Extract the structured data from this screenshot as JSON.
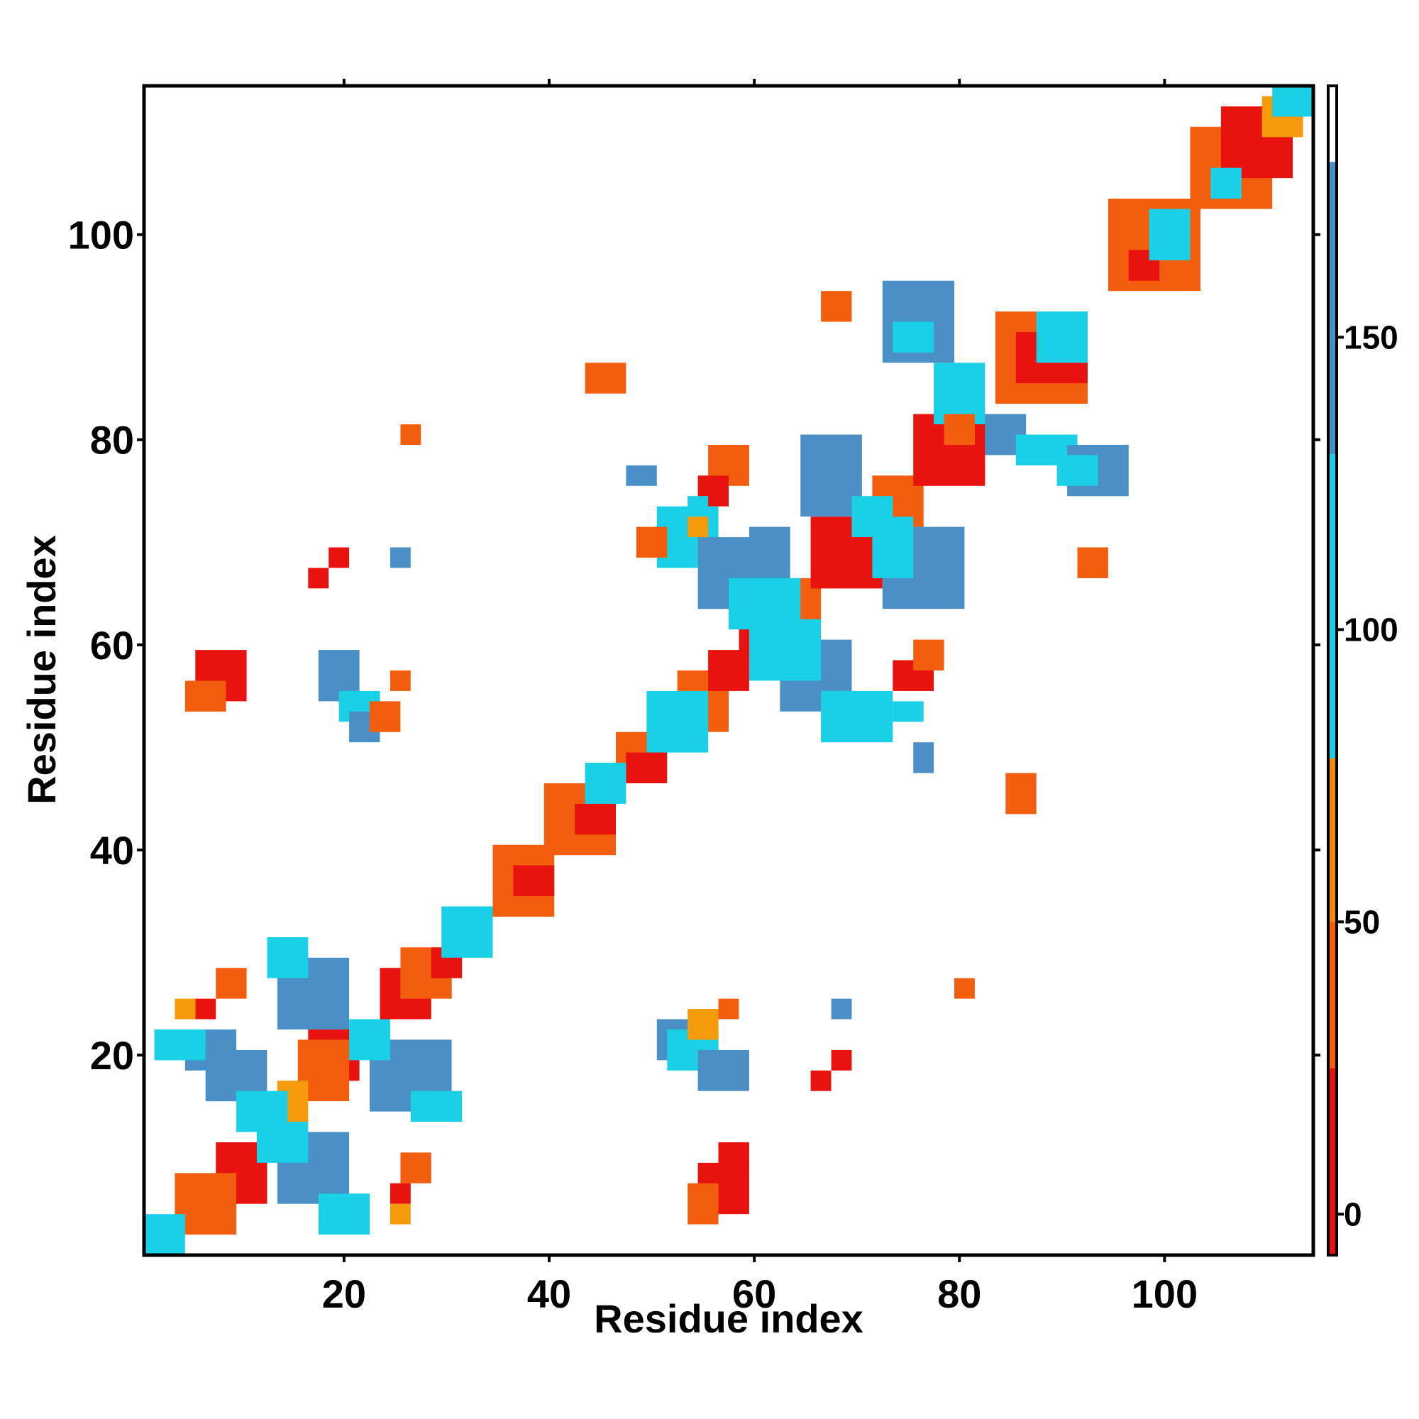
{
  "chart_data": {
    "type": "heatmap",
    "title": "",
    "xlabel": "Residue index",
    "ylabel": "Residue index",
    "xlim": [
      1,
      114
    ],
    "ylim": [
      1,
      114
    ],
    "x_ticks": [
      20,
      40,
      60,
      80,
      100
    ],
    "y_ticks": [
      20,
      40,
      60,
      80,
      100
    ],
    "colorbar": {
      "ticks": [
        0,
        50,
        100,
        150
      ],
      "range": [
        -7,
        193
      ],
      "bands": [
        {
          "from": -7,
          "to": 25,
          "color": "#e8120e"
        },
        {
          "from": 25,
          "to": 50,
          "color": "#f25e0d"
        },
        {
          "from": 50,
          "to": 78,
          "color": "#f58a0a"
        },
        {
          "from": 78,
          "to": 130,
          "color": "#1ad0e6"
        },
        {
          "from": 130,
          "to": 180,
          "color": "#4a8fc6"
        },
        {
          "from": 180,
          "to": 193,
          "color": "#ffffff"
        }
      ]
    },
    "cell_colors": {
      "r": "#e8120e",
      "o": "#f25e0d",
      "y": "#f59a0a",
      "c": "#1ad0e6",
      "b": "#4a8fc6"
    },
    "cells": [
      {
        "c": "r",
        "x1": 17,
        "x2": 21,
        "y1": 18,
        "y2": 22
      },
      {
        "c": "o",
        "x1": 16,
        "x2": 20,
        "y1": 16,
        "y2": 21
      },
      {
        "c": "r",
        "x1": 8,
        "x2": 12,
        "y1": 6,
        "y2": 11
      },
      {
        "c": "o",
        "x1": 4,
        "x2": 9,
        "y1": 3,
        "y2": 8
      },
      {
        "c": "y",
        "x1": 14,
        "x2": 16,
        "y1": 14,
        "y2": 17
      },
      {
        "c": "r",
        "x1": 24,
        "x2": 28,
        "y1": 24,
        "y2": 28
      },
      {
        "c": "o",
        "x1": 26,
        "x2": 30,
        "y1": 26,
        "y2": 30
      },
      {
        "c": "r",
        "x1": 29,
        "x2": 31,
        "y1": 28,
        "y2": 30
      },
      {
        "c": "o",
        "x1": 35,
        "x2": 40,
        "y1": 34,
        "y2": 40
      },
      {
        "c": "r",
        "x1": 37,
        "x2": 40,
        "y1": 36,
        "y2": 38
      },
      {
        "c": "o",
        "x1": 40,
        "x2": 46,
        "y1": 40,
        "y2": 46
      },
      {
        "c": "r",
        "x1": 43,
        "x2": 46,
        "y1": 42,
        "y2": 44
      },
      {
        "c": "o",
        "x1": 47,
        "x2": 51,
        "y1": 47,
        "y2": 51
      },
      {
        "c": "r",
        "x1": 48,
        "x2": 51,
        "y1": 47,
        "y2": 49
      },
      {
        "c": "o",
        "x1": 53,
        "x2": 57,
        "y1": 52,
        "y2": 57
      },
      {
        "c": "r",
        "x1": 56,
        "x2": 59,
        "y1": 56,
        "y2": 59
      },
      {
        "c": "r",
        "x1": 59,
        "x2": 62,
        "y1": 59,
        "y2": 62
      },
      {
        "c": "o",
        "x1": 62,
        "x2": 66,
        "y1": 62,
        "y2": 66
      },
      {
        "c": "r",
        "x1": 66,
        "x2": 72,
        "y1": 66,
        "y2": 72
      },
      {
        "c": "o",
        "x1": 72,
        "x2": 76,
        "y1": 72,
        "y2": 76
      },
      {
        "c": "r",
        "x1": 76,
        "x2": 82,
        "y1": 76,
        "y2": 82
      },
      {
        "c": "o",
        "x1": 84,
        "x2": 92,
        "y1": 84,
        "y2": 92
      },
      {
        "c": "r",
        "x1": 86,
        "x2": 92,
        "y1": 86,
        "y2": 90
      },
      {
        "c": "o",
        "x1": 95,
        "x2": 103,
        "y1": 95,
        "y2": 103
      },
      {
        "c": "r",
        "x1": 97,
        "x2": 99,
        "y1": 96,
        "y2": 98
      },
      {
        "c": "o",
        "x1": 103,
        "x2": 110,
        "y1": 103,
        "y2": 110
      },
      {
        "c": "r",
        "x1": 106,
        "x2": 112,
        "y1": 106,
        "y2": 112
      },
      {
        "c": "y",
        "x1": 110,
        "x2": 113,
        "y1": 110,
        "y2": 113
      },
      {
        "c": "c",
        "x1": 1,
        "x2": 4,
        "y1": 1,
        "y2": 4
      },
      {
        "c": "c",
        "x1": 30,
        "x2": 34,
        "y1": 30,
        "y2": 34
      },
      {
        "c": "c",
        "x1": 44,
        "x2": 47,
        "y1": 45,
        "y2": 48
      },
      {
        "c": "c",
        "x1": 50,
        "x2": 55,
        "y1": 50,
        "y2": 55
      },
      {
        "c": "c",
        "x1": 99,
        "x2": 102,
        "y1": 98,
        "y2": 102
      },
      {
        "c": "c",
        "x1": 88,
        "x2": 92,
        "y1": 88,
        "y2": 92
      },
      {
        "c": "c",
        "x1": 105,
        "x2": 107,
        "y1": 104,
        "y2": 106
      },
      {
        "c": "c",
        "x1": 111,
        "x2": 114,
        "y1": 112,
        "y2": 114
      },
      {
        "c": "b",
        "x1": 5,
        "x2": 9,
        "y1": 19,
        "y2": 22
      },
      {
        "c": "c",
        "x1": 2,
        "x2": 6,
        "y1": 20,
        "y2": 22
      },
      {
        "c": "b",
        "x1": 7,
        "x2": 12,
        "y1": 16,
        "y2": 20
      },
      {
        "c": "c",
        "x1": 10,
        "x2": 14,
        "y1": 13,
        "y2": 16
      },
      {
        "c": "b",
        "x1": 14,
        "x2": 20,
        "y1": 6,
        "y2": 12
      },
      {
        "c": "c",
        "x1": 12,
        "x2": 16,
        "y1": 10,
        "y2": 13
      },
      {
        "c": "c",
        "x1": 18,
        "x2": 22,
        "y1": 3,
        "y2": 6
      },
      {
        "c": "b",
        "x1": 14,
        "x2": 20,
        "y1": 23,
        "y2": 29
      },
      {
        "c": "c",
        "x1": 13,
        "x2": 16,
        "y1": 28,
        "y2": 31
      },
      {
        "c": "b",
        "x1": 23,
        "x2": 30,
        "y1": 15,
        "y2": 21
      },
      {
        "c": "c",
        "x1": 21,
        "x2": 24,
        "y1": 20,
        "y2": 23
      },
      {
        "c": "c",
        "x1": 27,
        "x2": 31,
        "y1": 14,
        "y2": 16
      },
      {
        "c": "b",
        "x1": 60,
        "x2": 63,
        "y1": 65,
        "y2": 71
      },
      {
        "c": "c",
        "x1": 51,
        "x2": 56,
        "y1": 68,
        "y2": 73
      },
      {
        "c": "b",
        "x1": 55,
        "x2": 60,
        "y1": 64,
        "y2": 70
      },
      {
        "c": "c",
        "x1": 58,
        "x2": 64,
        "y1": 62,
        "y2": 66
      },
      {
        "c": "b",
        "x1": 63,
        "x2": 69,
        "y1": 54,
        "y2": 60
      },
      {
        "c": "c",
        "x1": 60,
        "x2": 66,
        "y1": 57,
        "y2": 62
      },
      {
        "c": "c",
        "x1": 67,
        "x2": 73,
        "y1": 51,
        "y2": 55
      },
      {
        "c": "b",
        "x1": 65,
        "x2": 70,
        "y1": 73,
        "y2": 80
      },
      {
        "c": "c",
        "x1": 70,
        "x2": 73,
        "y1": 71,
        "y2": 74
      },
      {
        "c": "b",
        "x1": 73,
        "x2": 80,
        "y1": 64,
        "y2": 71
      },
      {
        "c": "c",
        "x1": 72,
        "x2": 75,
        "y1": 67,
        "y2": 72
      },
      {
        "c": "b",
        "x1": 73,
        "x2": 79,
        "y1": 88,
        "y2": 95
      },
      {
        "c": "c",
        "x1": 74,
        "x2": 77,
        "y1": 89,
        "y2": 91
      },
      {
        "c": "c",
        "x1": 78,
        "x2": 82,
        "y1": 82,
        "y2": 87
      },
      {
        "c": "b",
        "x1": 83,
        "x2": 86,
        "y1": 79,
        "y2": 82
      },
      {
        "c": "c",
        "x1": 86,
        "x2": 91,
        "y1": 78,
        "y2": 80
      },
      {
        "c": "b",
        "x1": 91,
        "x2": 96,
        "y1": 75,
        "y2": 79
      },
      {
        "c": "c",
        "x1": 90,
        "x2": 93,
        "y1": 76,
        "y2": 78
      },
      {
        "c": "b",
        "x1": 18,
        "x2": 21,
        "y1": 55,
        "y2": 59
      },
      {
        "c": "c",
        "x1": 20,
        "x2": 23,
        "y1": 53,
        "y2": 55
      },
      {
        "c": "b",
        "x1": 21,
        "x2": 23,
        "y1": 51,
        "y2": 53
      },
      {
        "c": "b",
        "x1": 51,
        "x2": 56,
        "y1": 20,
        "y2": 23
      },
      {
        "c": "c",
        "x1": 52,
        "x2": 56,
        "y1": 19,
        "y2": 22
      },
      {
        "c": "b",
        "x1": 55,
        "x2": 59,
        "y1": 17,
        "y2": 20
      },
      {
        "c": "r",
        "x1": 6,
        "x2": 10,
        "y1": 55,
        "y2": 59
      },
      {
        "c": "o",
        "x1": 5,
        "x2": 8,
        "y1": 54,
        "y2": 56
      },
      {
        "c": "r",
        "x1": 55,
        "x2": 59,
        "y1": 5,
        "y2": 9
      },
      {
        "c": "r",
        "x1": 57,
        "x2": 59,
        "y1": 9,
        "y2": 11
      },
      {
        "c": "o",
        "x1": 54,
        "x2": 56,
        "y1": 4,
        "y2": 7
      },
      {
        "c": "o",
        "x1": 79,
        "x2": 81,
        "y1": 80,
        "y2": 82
      },
      {
        "c": "o",
        "x1": 25,
        "x2": 26,
        "y1": 56,
        "y2": 57
      },
      {
        "c": "r",
        "x1": 17,
        "x2": 18,
        "y1": 66,
        "y2": 67
      },
      {
        "c": "r",
        "x1": 19,
        "x2": 20,
        "y1": 68,
        "y2": 69
      },
      {
        "c": "b",
        "x1": 25,
        "x2": 26,
        "y1": 68,
        "y2": 69
      },
      {
        "c": "o",
        "x1": 26,
        "x2": 27,
        "y1": 80,
        "y2": 81
      },
      {
        "c": "o",
        "x1": 44,
        "x2": 47,
        "y1": 85,
        "y2": 87
      },
      {
        "c": "o",
        "x1": 67,
        "x2": 69,
        "y1": 92,
        "y2": 94
      },
      {
        "c": "o",
        "x1": 56,
        "x2": 59,
        "y1": 76,
        "y2": 79
      },
      {
        "c": "r",
        "x1": 55,
        "x2": 57,
        "y1": 74,
        "y2": 76
      },
      {
        "c": "b",
        "x1": 48,
        "x2": 50,
        "y1": 76,
        "y2": 77
      },
      {
        "c": "o",
        "x1": 49,
        "x2": 51,
        "y1": 69,
        "y2": 71
      },
      {
        "c": "r",
        "x1": 74,
        "x2": 77,
        "y1": 56,
        "y2": 58
      },
      {
        "c": "o",
        "x1": 76,
        "x2": 78,
        "y1": 58,
        "y2": 60
      },
      {
        "c": "c",
        "x1": 74,
        "x2": 76,
        "y1": 53,
        "y2": 54
      },
      {
        "c": "b",
        "x1": 76,
        "x2": 77,
        "y1": 48,
        "y2": 50
      },
      {
        "c": "o",
        "x1": 85,
        "x2": 87,
        "y1": 44,
        "y2": 47
      },
      {
        "c": "o",
        "x1": 92,
        "x2": 94,
        "y1": 67,
        "y2": 69
      },
      {
        "c": "o",
        "x1": 23,
        "x2": 25,
        "y1": 52,
        "y2": 54
      },
      {
        "c": "o",
        "x1": 8,
        "x2": 10,
        "y1": 26,
        "y2": 28
      },
      {
        "c": "r",
        "x1": 6,
        "x2": 7,
        "y1": 24,
        "y2": 25
      },
      {
        "c": "y",
        "x1": 4,
        "x2": 5,
        "y1": 24,
        "y2": 25
      },
      {
        "c": "o",
        "x1": 26,
        "x2": 28,
        "y1": 8,
        "y2": 10
      },
      {
        "c": "r",
        "x1": 25,
        "x2": 26,
        "y1": 6,
        "y2": 7
      },
      {
        "c": "y",
        "x1": 25,
        "x2": 26,
        "y1": 4,
        "y2": 5
      },
      {
        "c": "o",
        "x1": 57,
        "x2": 58,
        "y1": 24,
        "y2": 25
      },
      {
        "c": "y",
        "x1": 54,
        "x2": 56,
        "y1": 22,
        "y2": 24
      },
      {
        "c": "b",
        "x1": 68,
        "x2": 69,
        "y1": 24,
        "y2": 25
      },
      {
        "c": "r",
        "x1": 68,
        "x2": 69,
        "y1": 19,
        "y2": 20
      },
      {
        "c": "r",
        "x1": 66,
        "x2": 67,
        "y1": 17,
        "y2": 18
      },
      {
        "c": "o",
        "x1": 80,
        "x2": 81,
        "y1": 26,
        "y2": 27
      },
      {
        "c": "c",
        "x1": 54,
        "x2": 55,
        "y1": 73,
        "y2": 74
      },
      {
        "c": "y",
        "x1": 54,
        "x2": 55,
        "y1": 71,
        "y2": 72
      }
    ]
  }
}
